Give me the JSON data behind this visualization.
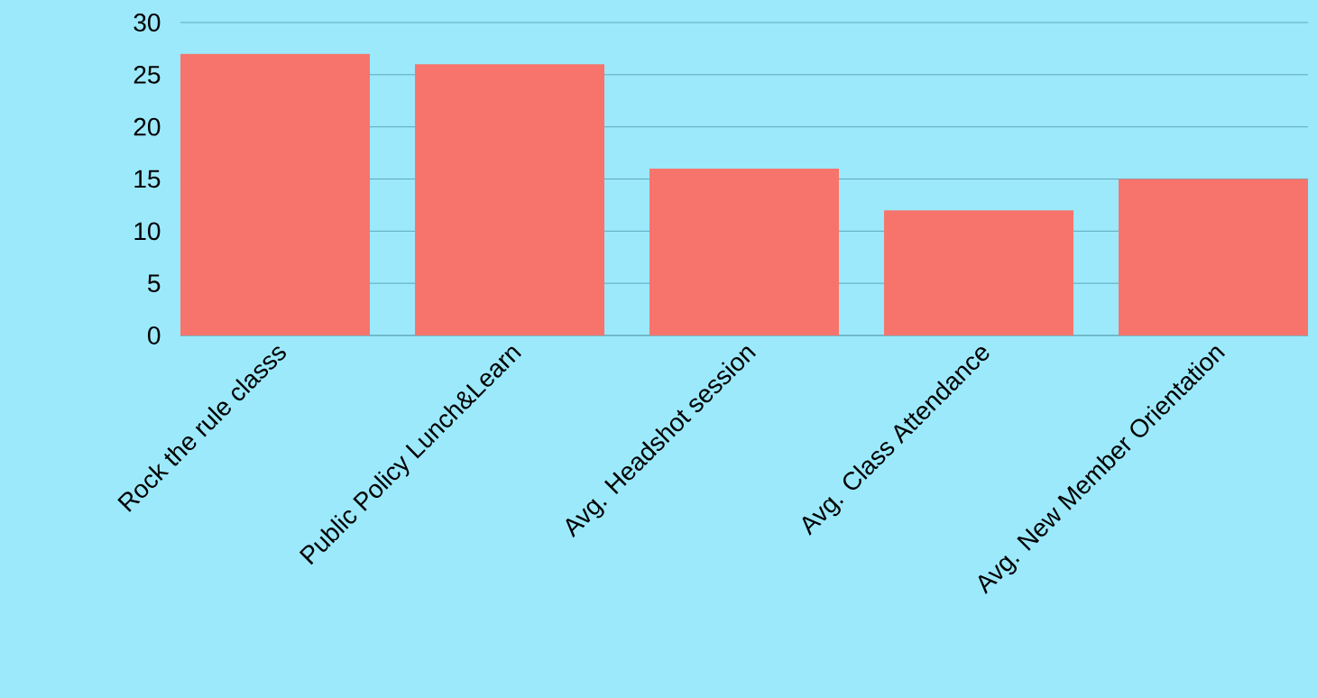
{
  "chart_data": {
    "type": "bar",
    "categories": [
      "Rock the rule classs",
      "Public Policy Lunch&Learn",
      "Avg. Headshot session",
      "Avg. Class Attendance",
      "Avg. New Member Orientation"
    ],
    "values": [
      27,
      26,
      16,
      12,
      15
    ],
    "color": "#f7746c",
    "ylim": [
      0,
      30
    ],
    "yticks": [
      0,
      5,
      10,
      15,
      20,
      25,
      30
    ],
    "grid": "y"
  }
}
